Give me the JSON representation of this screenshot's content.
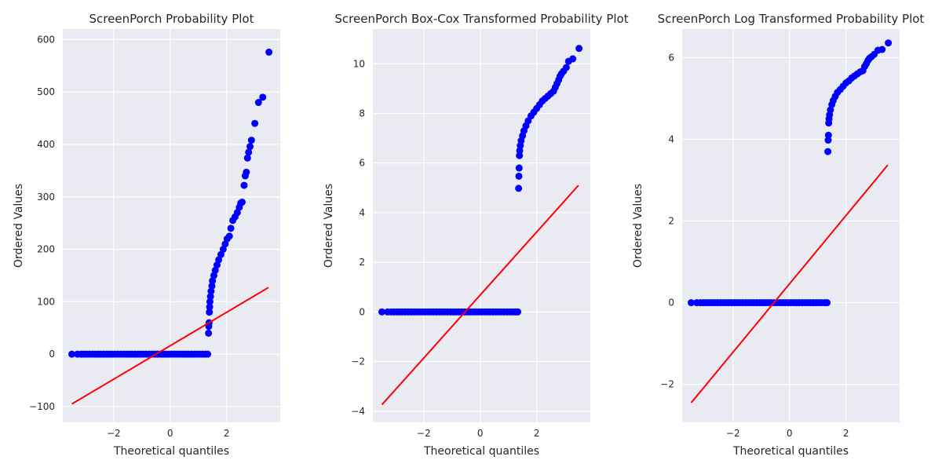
{
  "chart_data": [
    {
      "type": "scatter",
      "title": "ScreenPorch Probability Plot",
      "xlabel": "Theoretical quantiles",
      "ylabel": "Ordered Values",
      "xlim": [
        -3.8,
        3.9
      ],
      "ylim": [
        -130,
        620
      ],
      "xticks": [
        -2,
        0,
        2
      ],
      "xtick_labels": [
        "−2",
        "0",
        "2"
      ],
      "yticks": [
        -100,
        0,
        100,
        200,
        300,
        400,
        500,
        600
      ],
      "ytick_labels": [
        "−100",
        "0",
        "100",
        "200",
        "300",
        "400",
        "500",
        "600"
      ],
      "grid": true,
      "marker_color": "#0000ff",
      "line_color": "#ff0000",
      "points": [
        [
          -3.48,
          0
        ],
        [
          -3.28,
          0
        ],
        [
          -3.15,
          0
        ],
        [
          -3.05,
          0
        ],
        [
          -2.95,
          0
        ],
        [
          -2.85,
          0
        ],
        [
          -2.75,
          0
        ],
        [
          -2.65,
          0
        ],
        [
          -2.55,
          0
        ],
        [
          -2.45,
          0
        ],
        [
          -2.35,
          0
        ],
        [
          -2.25,
          0
        ],
        [
          -2.15,
          0
        ],
        [
          -2.05,
          0
        ],
        [
          -1.95,
          0
        ],
        [
          -1.85,
          0
        ],
        [
          -1.75,
          0
        ],
        [
          -1.65,
          0
        ],
        [
          -1.55,
          0
        ],
        [
          -1.45,
          0
        ],
        [
          -1.35,
          0
        ],
        [
          -1.25,
          0
        ],
        [
          -1.15,
          0
        ],
        [
          -1.05,
          0
        ],
        [
          -0.95,
          0
        ],
        [
          -0.85,
          0
        ],
        [
          -0.75,
          0
        ],
        [
          -0.65,
          0
        ],
        [
          -0.55,
          0
        ],
        [
          -0.45,
          0
        ],
        [
          -0.35,
          0
        ],
        [
          -0.25,
          0
        ],
        [
          -0.15,
          0
        ],
        [
          -0.05,
          0
        ],
        [
          0.05,
          0
        ],
        [
          0.15,
          0
        ],
        [
          0.25,
          0
        ],
        [
          0.35,
          0
        ],
        [
          0.45,
          0
        ],
        [
          0.55,
          0
        ],
        [
          0.65,
          0
        ],
        [
          0.75,
          0
        ],
        [
          0.85,
          0
        ],
        [
          0.95,
          0
        ],
        [
          1.05,
          0
        ],
        [
          1.15,
          0
        ],
        [
          1.25,
          0
        ],
        [
          1.33,
          0
        ],
        [
          1.36,
          40
        ],
        [
          1.37,
          53
        ],
        [
          1.38,
          60
        ],
        [
          1.39,
          80
        ],
        [
          1.4,
          90
        ],
        [
          1.41,
          100
        ],
        [
          1.43,
          110
        ],
        [
          1.45,
          120
        ],
        [
          1.48,
          130
        ],
        [
          1.5,
          140
        ],
        [
          1.55,
          150
        ],
        [
          1.6,
          160
        ],
        [
          1.66,
          170
        ],
        [
          1.72,
          180
        ],
        [
          1.8,
          190
        ],
        [
          1.88,
          200
        ],
        [
          1.95,
          210
        ],
        [
          2.02,
          220
        ],
        [
          2.1,
          225
        ],
        [
          2.15,
          240
        ],
        [
          2.22,
          255
        ],
        [
          2.3,
          262
        ],
        [
          2.38,
          270
        ],
        [
          2.45,
          280
        ],
        [
          2.5,
          288
        ],
        [
          2.55,
          290
        ],
        [
          2.62,
          322
        ],
        [
          2.66,
          340
        ],
        [
          2.7,
          347
        ],
        [
          2.74,
          374
        ],
        [
          2.78,
          385
        ],
        [
          2.83,
          396
        ],
        [
          2.88,
          408
        ],
        [
          3.0,
          440
        ],
        [
          3.13,
          480
        ],
        [
          3.28,
          490
        ],
        [
          3.5,
          576
        ]
      ],
      "fit_line": {
        "x": [
          -3.48,
          3.48
        ],
        "y": [
          -95,
          127
        ]
      }
    },
    {
      "type": "scatter",
      "title": "ScreenPorch Box-Cox Transformed Probability Plot",
      "xlabel": "Theoretical quantiles",
      "ylabel": "Ordered Values",
      "xlim": [
        -3.8,
        3.9
      ],
      "ylim": [
        -4.45,
        11.4
      ],
      "xticks": [
        -2,
        0,
        2
      ],
      "xtick_labels": [
        "−2",
        "0",
        "2"
      ],
      "yticks": [
        -4,
        -2,
        0,
        2,
        4,
        6,
        8,
        10
      ],
      "ytick_labels": [
        "−4",
        "−2",
        "0",
        "2",
        "4",
        "6",
        "8",
        "10"
      ],
      "grid": true,
      "marker_color": "#0000ff",
      "line_color": "#ff0000",
      "points": [
        [
          -3.48,
          0
        ],
        [
          -3.28,
          0
        ],
        [
          -3.15,
          0
        ],
        [
          -3.05,
          0
        ],
        [
          -2.95,
          0
        ],
        [
          -2.85,
          0
        ],
        [
          -2.75,
          0
        ],
        [
          -2.65,
          0
        ],
        [
          -2.55,
          0
        ],
        [
          -2.45,
          0
        ],
        [
          -2.35,
          0
        ],
        [
          -2.25,
          0
        ],
        [
          -2.15,
          0
        ],
        [
          -2.05,
          0
        ],
        [
          -1.95,
          0
        ],
        [
          -1.85,
          0
        ],
        [
          -1.75,
          0
        ],
        [
          -1.65,
          0
        ],
        [
          -1.55,
          0
        ],
        [
          -1.45,
          0
        ],
        [
          -1.35,
          0
        ],
        [
          -1.25,
          0
        ],
        [
          -1.15,
          0
        ],
        [
          -1.05,
          0
        ],
        [
          -0.95,
          0
        ],
        [
          -0.85,
          0
        ],
        [
          -0.75,
          0
        ],
        [
          -0.65,
          0
        ],
        [
          -0.55,
          0
        ],
        [
          -0.45,
          0
        ],
        [
          -0.35,
          0
        ],
        [
          -0.25,
          0
        ],
        [
          -0.15,
          0
        ],
        [
          -0.05,
          0
        ],
        [
          0.05,
          0
        ],
        [
          0.15,
          0
        ],
        [
          0.25,
          0
        ],
        [
          0.35,
          0
        ],
        [
          0.45,
          0
        ],
        [
          0.55,
          0
        ],
        [
          0.65,
          0
        ],
        [
          0.75,
          0
        ],
        [
          0.85,
          0
        ],
        [
          0.95,
          0
        ],
        [
          1.05,
          0
        ],
        [
          1.15,
          0
        ],
        [
          1.25,
          0
        ],
        [
          1.33,
          0
        ],
        [
          1.36,
          4.98
        ],
        [
          1.37,
          5.47
        ],
        [
          1.38,
          5.8
        ],
        [
          1.39,
          6.3
        ],
        [
          1.4,
          6.5
        ],
        [
          1.42,
          6.7
        ],
        [
          1.45,
          6.9
        ],
        [
          1.5,
          7.1
        ],
        [
          1.55,
          7.3
        ],
        [
          1.62,
          7.5
        ],
        [
          1.7,
          7.7
        ],
        [
          1.8,
          7.9
        ],
        [
          1.9,
          8.05
        ],
        [
          2.0,
          8.2
        ],
        [
          2.1,
          8.35
        ],
        [
          2.2,
          8.5
        ],
        [
          2.3,
          8.6
        ],
        [
          2.4,
          8.7
        ],
        [
          2.5,
          8.8
        ],
        [
          2.6,
          8.9
        ],
        [
          2.66,
          9.05
        ],
        [
          2.72,
          9.2
        ],
        [
          2.78,
          9.35
        ],
        [
          2.83,
          9.5
        ],
        [
          2.88,
          9.6
        ],
        [
          2.95,
          9.7
        ],
        [
          3.05,
          9.85
        ],
        [
          3.13,
          10.1
        ],
        [
          3.28,
          10.2
        ],
        [
          3.5,
          10.62
        ]
      ],
      "fit_line": {
        "x": [
          -3.48,
          3.48
        ],
        "y": [
          -3.74,
          5.1
        ]
      }
    },
    {
      "type": "scatter",
      "title": "ScreenPorch Log Transformed Probability Plot",
      "xlabel": "Theoretical quantiles",
      "ylabel": "Ordered Values",
      "xlim": [
        -3.8,
        3.9
      ],
      "ylim": [
        -2.93,
        6.7
      ],
      "xticks": [
        -2,
        0,
        2
      ],
      "xtick_labels": [
        "−2",
        "0",
        "2"
      ],
      "yticks": [
        -2,
        0,
        2,
        4,
        6
      ],
      "ytick_labels": [
        "−2",
        "0",
        "2",
        "4",
        "6"
      ],
      "grid": true,
      "marker_color": "#0000ff",
      "line_color": "#ff0000",
      "points": [
        [
          -3.48,
          0
        ],
        [
          -3.28,
          0
        ],
        [
          -3.15,
          0
        ],
        [
          -3.05,
          0
        ],
        [
          -2.95,
          0
        ],
        [
          -2.85,
          0
        ],
        [
          -2.75,
          0
        ],
        [
          -2.65,
          0
        ],
        [
          -2.55,
          0
        ],
        [
          -2.45,
          0
        ],
        [
          -2.35,
          0
        ],
        [
          -2.25,
          0
        ],
        [
          -2.15,
          0
        ],
        [
          -2.05,
          0
        ],
        [
          -1.95,
          0
        ],
        [
          -1.85,
          0
        ],
        [
          -1.75,
          0
        ],
        [
          -1.65,
          0
        ],
        [
          -1.55,
          0
        ],
        [
          -1.45,
          0
        ],
        [
          -1.35,
          0
        ],
        [
          -1.25,
          0
        ],
        [
          -1.15,
          0
        ],
        [
          -1.05,
          0
        ],
        [
          -0.95,
          0
        ],
        [
          -0.85,
          0
        ],
        [
          -0.75,
          0
        ],
        [
          -0.65,
          0
        ],
        [
          -0.55,
          0
        ],
        [
          -0.45,
          0
        ],
        [
          -0.35,
          0
        ],
        [
          -0.25,
          0
        ],
        [
          -0.15,
          0
        ],
        [
          -0.05,
          0
        ],
        [
          0.05,
          0
        ],
        [
          0.15,
          0
        ],
        [
          0.25,
          0
        ],
        [
          0.35,
          0
        ],
        [
          0.45,
          0
        ],
        [
          0.55,
          0
        ],
        [
          0.65,
          0
        ],
        [
          0.75,
          0
        ],
        [
          0.85,
          0
        ],
        [
          0.95,
          0
        ],
        [
          1.05,
          0
        ],
        [
          1.15,
          0
        ],
        [
          1.25,
          0
        ],
        [
          1.33,
          0
        ],
        [
          1.36,
          3.7
        ],
        [
          1.37,
          3.98
        ],
        [
          1.38,
          4.1
        ],
        [
          1.39,
          4.4
        ],
        [
          1.4,
          4.5
        ],
        [
          1.42,
          4.6
        ],
        [
          1.45,
          4.72
        ],
        [
          1.5,
          4.85
        ],
        [
          1.55,
          4.95
        ],
        [
          1.62,
          5.05
        ],
        [
          1.7,
          5.15
        ],
        [
          1.8,
          5.22
        ],
        [
          1.9,
          5.3
        ],
        [
          2.0,
          5.38
        ],
        [
          2.1,
          5.43
        ],
        [
          2.2,
          5.5
        ],
        [
          2.3,
          5.55
        ],
        [
          2.4,
          5.6
        ],
        [
          2.5,
          5.65
        ],
        [
          2.6,
          5.68
        ],
        [
          2.66,
          5.78
        ],
        [
          2.72,
          5.85
        ],
        [
          2.78,
          5.93
        ],
        [
          2.83,
          5.98
        ],
        [
          2.9,
          6.02
        ],
        [
          3.0,
          6.08
        ],
        [
          3.13,
          6.18
        ],
        [
          3.28,
          6.2
        ],
        [
          3.5,
          6.36
        ]
      ],
      "fit_line": {
        "x": [
          -3.48,
          3.48
        ],
        "y": [
          -2.45,
          3.37
        ]
      }
    }
  ]
}
